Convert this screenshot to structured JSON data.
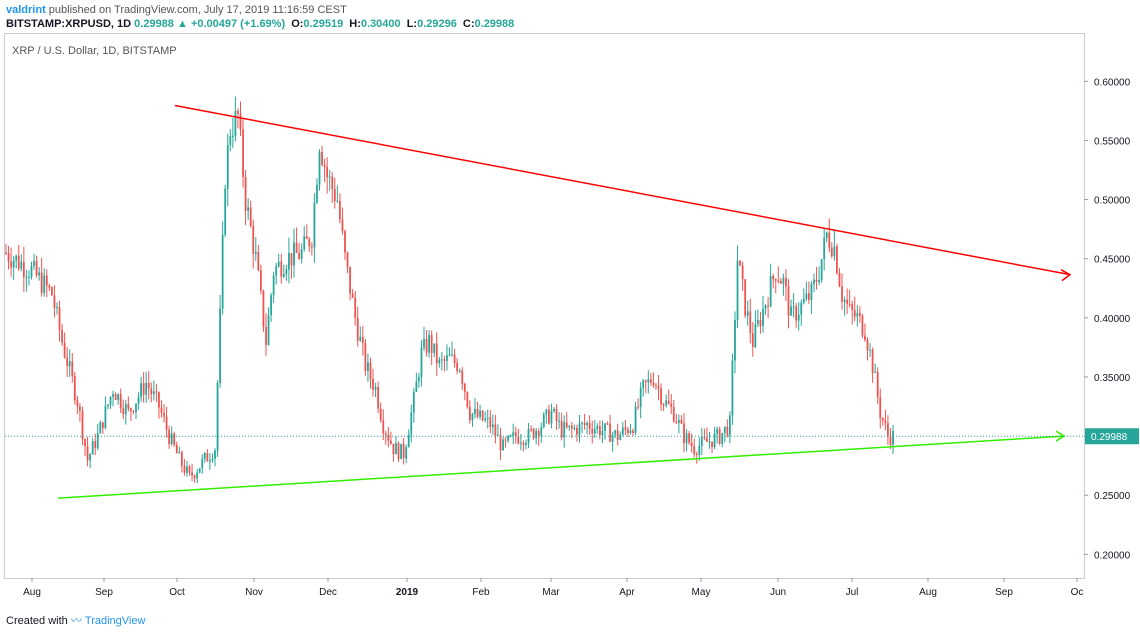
{
  "header": {
    "author": "valdrint",
    "published": "published on TradingView.com, July 17, 2019 11:16:59 CEST"
  },
  "ohlc": {
    "symbol": "BITSTAMP:XRPUSD, 1D",
    "last": "0.29988",
    "change": "+0.00497 (+1.69%)",
    "o": "0.29519",
    "h": "0.30400",
    "l": "0.29296",
    "c": "0.29988",
    "o_label": "O:",
    "h_label": "H:",
    "l_label": "L:",
    "c_label": "C:"
  },
  "symbol_label": "XRP / U.S. Dollar, 1D, BITSTAMP",
  "footer": {
    "created_with": "Created with",
    "brand": "TradingView"
  },
  "colors": {
    "up": "#26a69a",
    "down": "#ef5350",
    "resistance": "#ff0000",
    "support": "#33ee00",
    "price_label_bg": "#26a69a"
  },
  "chart_data": {
    "type": "candlestick",
    "title": "XRP / U.S. Dollar, 1D, BITSTAMP",
    "ylim": [
      0.18,
      0.64
    ],
    "y_ticks": [
      "0.20000",
      "0.25000",
      "0.30000",
      "0.35000",
      "0.40000",
      "0.45000",
      "0.50000",
      "0.55000",
      "0.60000"
    ],
    "x_ticks": [
      "Aug",
      "Sep",
      "Oct",
      "Nov",
      "Dec",
      "2019",
      "Feb",
      "Mar",
      "Apr",
      "May",
      "Jun",
      "Jul",
      "Aug",
      "Sep",
      "Oc"
    ],
    "last_price": "0.29988",
    "price_path": [
      [
        0,
        0.455
      ],
      [
        10,
        0.44
      ],
      [
        18,
        0.42
      ],
      [
        22,
        0.38
      ],
      [
        28,
        0.33
      ],
      [
        32,
        0.28
      ],
      [
        36,
        0.3
      ],
      [
        42,
        0.34
      ],
      [
        48,
        0.32
      ],
      [
        55,
        0.345
      ],
      [
        60,
        0.325
      ],
      [
        64,
        0.3
      ],
      [
        68,
        0.28
      ],
      [
        72,
        0.265
      ],
      [
        78,
        0.28
      ],
      [
        82,
        0.29
      ],
      [
        84,
        0.4
      ],
      [
        86,
        0.52
      ],
      [
        88,
        0.56
      ],
      [
        91,
        0.57
      ],
      [
        94,
        0.5
      ],
      [
        98,
        0.45
      ],
      [
        102,
        0.38
      ],
      [
        105,
        0.44
      ],
      [
        110,
        0.45
      ],
      [
        116,
        0.455
      ],
      [
        120,
        0.47
      ],
      [
        123,
        0.55
      ],
      [
        126,
        0.52
      ],
      [
        130,
        0.5
      ],
      [
        133,
        0.45
      ],
      [
        137,
        0.4
      ],
      [
        141,
        0.36
      ],
      [
        145,
        0.34
      ],
      [
        148,
        0.31
      ],
      [
        152,
        0.29
      ],
      [
        156,
        0.285
      ],
      [
        160,
        0.33
      ],
      [
        163,
        0.37
      ],
      [
        166,
        0.38
      ],
      [
        170,
        0.36
      ],
      [
        174,
        0.365
      ],
      [
        178,
        0.36
      ],
      [
        182,
        0.32
      ],
      [
        186,
        0.315
      ],
      [
        190,
        0.31
      ],
      [
        195,
        0.29
      ],
      [
        200,
        0.3
      ],
      [
        205,
        0.3
      ],
      [
        210,
        0.31
      ],
      [
        214,
        0.32
      ],
      [
        218,
        0.305
      ],
      [
        222,
        0.305
      ],
      [
        228,
        0.31
      ],
      [
        234,
        0.305
      ],
      [
        240,
        0.3
      ],
      [
        246,
        0.31
      ],
      [
        250,
        0.34
      ],
      [
        254,
        0.35
      ],
      [
        258,
        0.33
      ],
      [
        262,
        0.32
      ],
      [
        266,
        0.3
      ],
      [
        270,
        0.29
      ],
      [
        275,
        0.295
      ],
      [
        280,
        0.3
      ],
      [
        284,
        0.31
      ],
      [
        287,
        0.45
      ],
      [
        290,
        0.41
      ],
      [
        293,
        0.38
      ],
      [
        296,
        0.4
      ],
      [
        299,
        0.42
      ],
      [
        302,
        0.44
      ],
      [
        305,
        0.43
      ],
      [
        308,
        0.4
      ],
      [
        312,
        0.41
      ],
      [
        316,
        0.42
      ],
      [
        319,
        0.44
      ],
      [
        322,
        0.47
      ],
      [
        325,
        0.46
      ],
      [
        328,
        0.42
      ],
      [
        331,
        0.405
      ],
      [
        334,
        0.4
      ],
      [
        337,
        0.39
      ],
      [
        340,
        0.36
      ],
      [
        343,
        0.32
      ],
      [
        346,
        0.3
      ],
      [
        348,
        0.2999
      ]
    ],
    "lines": [
      {
        "name": "resistance",
        "from": [
          0.5795,
          0.0
        ],
        "to": [
          0.4365,
          1.0
        ]
      },
      {
        "name": "support",
        "from": [
          0.2475,
          0.0
        ],
        "to": [
          0.3,
          1.0
        ]
      }
    ]
  }
}
